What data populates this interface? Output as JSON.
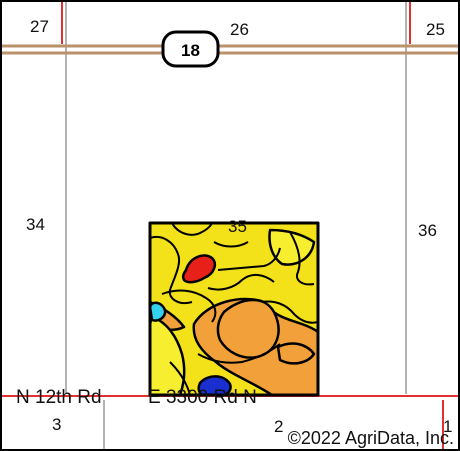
{
  "map": {
    "section_labels": {
      "s27": "27",
      "s26": "26",
      "s25": "25",
      "s34": "34",
      "s35": "35",
      "s36": "36",
      "s3": "3",
      "s2": "2",
      "s1": "1"
    },
    "highway_shield": "18",
    "roads": {
      "south_road": "N 12th Rd",
      "east_road": "E 3300 Rd N"
    },
    "copyright": "©2022 AgriData, Inc.",
    "colors": {
      "road_brown": "#b9926a",
      "section_line": "#9a9a9a",
      "red_line": "#e03030",
      "soil_yellow": "#f3e21a",
      "soil_orange": "#f2a13a",
      "soil_red": "#e8201a",
      "soil_cyan": "#35d0ee",
      "soil_blue": "#1a2fd0",
      "soil_bright_yellow": "#f8ee30"
    }
  }
}
